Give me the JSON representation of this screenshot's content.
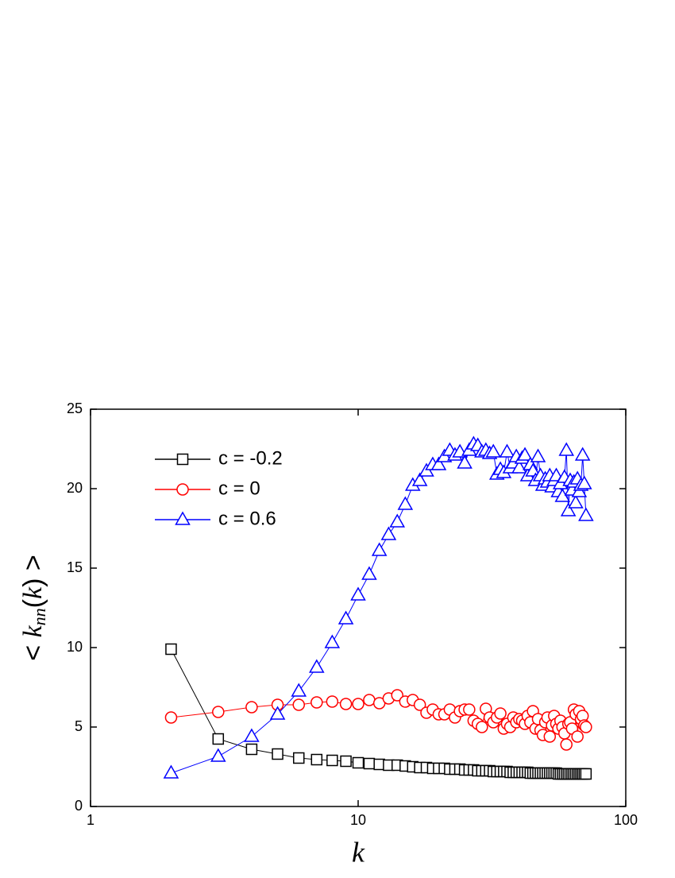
{
  "chart_data": {
    "type": "line",
    "xlabel": "k",
    "ylabel": [
      "< ",
      "k",
      "nn",
      "(",
      "k",
      ") >"
    ],
    "xscale": "log",
    "xlim": [
      1,
      100
    ],
    "xticks": [
      1,
      10,
      100
    ],
    "ylim": [
      0,
      25
    ],
    "yticks": [
      0,
      5,
      10,
      15,
      20,
      25
    ],
    "legend": "upper left",
    "x": [
      2,
      3,
      4,
      5,
      6,
      7,
      8,
      9,
      10,
      11,
      12,
      13,
      14,
      15,
      16,
      17,
      18,
      19,
      20,
      21,
      22,
      23,
      24,
      25,
      26,
      27,
      28,
      29,
      30,
      31,
      32,
      33,
      34,
      35,
      36,
      37,
      38,
      39,
      40,
      41,
      42,
      43,
      44,
      45,
      46,
      47,
      48,
      49,
      50,
      51,
      52,
      53,
      54,
      55,
      56,
      57,
      58,
      59,
      60,
      61,
      62,
      63,
      64,
      65,
      66,
      67,
      68,
      69,
      70,
      71
    ],
    "series": [
      {
        "name": "c = -0.2",
        "color": "#000000",
        "marker": "square",
        "values": [
          9.9,
          4.25,
          3.6,
          3.3,
          3.05,
          2.95,
          2.9,
          2.85,
          2.75,
          2.7,
          2.65,
          2.6,
          2.6,
          2.55,
          2.5,
          2.45,
          2.45,
          2.4,
          2.4,
          2.4,
          2.35,
          2.35,
          2.35,
          2.3,
          2.3,
          2.3,
          2.25,
          2.25,
          2.25,
          2.25,
          2.2,
          2.2,
          2.2,
          2.2,
          2.2,
          2.15,
          2.15,
          2.15,
          2.15,
          2.15,
          2.15,
          2.15,
          2.1,
          2.1,
          2.1,
          2.1,
          2.1,
          2.1,
          2.1,
          2.1,
          2.1,
          2.1,
          2.1,
          2.1,
          2.05,
          2.05,
          2.05,
          2.05,
          2.05,
          2.05,
          2.05,
          2.05,
          2.05,
          2.05,
          2.05,
          2.05,
          2.05,
          2.05,
          2.05,
          2.05
        ]
      },
      {
        "name": "c = 0",
        "color": "#ff0000",
        "marker": "circle",
        "values": [
          5.6,
          5.95,
          6.25,
          6.4,
          6.4,
          6.55,
          6.6,
          6.45,
          6.45,
          6.7,
          6.5,
          6.8,
          7.0,
          6.6,
          6.7,
          6.4,
          5.9,
          6.1,
          5.8,
          5.8,
          6.1,
          5.6,
          6.0,
          6.1,
          6.1,
          5.4,
          5.2,
          5.0,
          6.15,
          5.6,
          5.3,
          5.6,
          5.85,
          4.9,
          5.2,
          5.0,
          5.6,
          5.3,
          5.5,
          5.4,
          5.2,
          5.7,
          5.3,
          6.0,
          4.9,
          5.5,
          4.8,
          4.5,
          5.3,
          5.6,
          4.4,
          5.1,
          5.7,
          5.2,
          4.9,
          5.4,
          5.0,
          4.6,
          3.9,
          5.2,
          5.3,
          4.9,
          6.1,
          5.8,
          4.4,
          6.0,
          5.5,
          5.7,
          5.1,
          5.0
        ]
      },
      {
        "name": "c = 0.6",
        "color": "#0000ff",
        "marker": "triangle",
        "values": [
          2.1,
          3.15,
          4.4,
          5.8,
          7.25,
          8.75,
          10.3,
          11.8,
          13.3,
          14.6,
          16.1,
          17.1,
          17.9,
          19.0,
          20.2,
          20.5,
          21.1,
          21.5,
          21.5,
          22.0,
          22.4,
          22.1,
          22.3,
          21.6,
          22.4,
          22.8,
          22.7,
          22.3,
          22.4,
          22.2,
          22.3,
          20.9,
          21.2,
          21.0,
          22.3,
          21.3,
          21.6,
          22.0,
          21.3,
          21.9,
          22.1,
          20.8,
          21.5,
          21.1,
          20.5,
          22.0,
          20.8,
          20.2,
          20.6,
          20.4,
          20.8,
          20.1,
          20.5,
          20.8,
          19.8,
          20.3,
          19.5,
          20.7,
          22.4,
          18.6,
          20.5,
          19.9,
          20.4,
          19.1,
          20.6,
          19.8,
          20.2,
          22.1,
          20.3,
          18.3
        ]
      }
    ]
  }
}
